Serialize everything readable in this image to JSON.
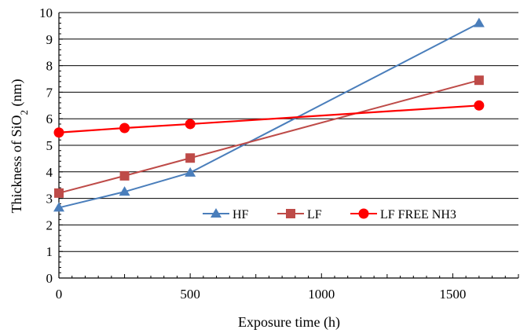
{
  "chart_data": {
    "type": "line",
    "title": "",
    "xlabel": "Exposure time (h)",
    "ylabel": {
      "prefix": "Thickness of SiO",
      "subscript": "2",
      "suffix": " (nm)"
    },
    "xlim": [
      0,
      1750
    ],
    "ylim": [
      0,
      10
    ],
    "xticks": [
      0,
      500,
      1000,
      1500
    ],
    "yticks": [
      0,
      1,
      2,
      3,
      4,
      5,
      6,
      7,
      8,
      9,
      10
    ],
    "grid": "horizontal",
    "legend_position": "inside-bottom-right",
    "series": [
      {
        "name": "HF",
        "color": "#4a7ebb",
        "marker": "triangle",
        "x": [
          0,
          250,
          500,
          1600
        ],
        "y": [
          2.65,
          3.25,
          3.97,
          9.6
        ]
      },
      {
        "name": "LF",
        "color": "#be4b48",
        "marker": "square",
        "x": [
          0,
          250,
          500,
          1600
        ],
        "y": [
          3.2,
          3.85,
          4.52,
          7.45
        ]
      },
      {
        "name": "LF FREE NH3",
        "color": "#ff0000",
        "marker": "circle",
        "x": [
          0,
          250,
          500,
          1600
        ],
        "y": [
          5.48,
          5.65,
          5.8,
          6.5
        ]
      }
    ]
  }
}
